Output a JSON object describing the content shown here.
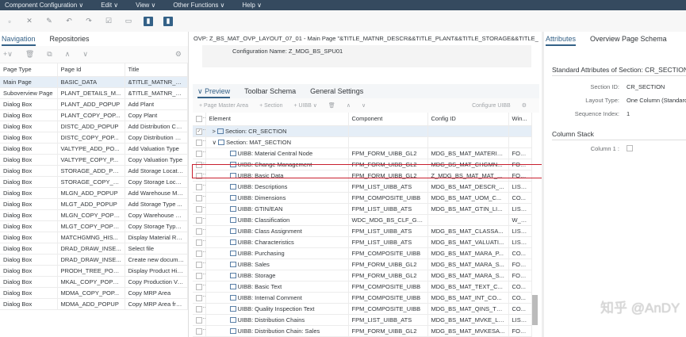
{
  "menu": [
    "Component Configuration ∨",
    "Edit ∨",
    "View ∨",
    "Other Functions ∨",
    "Help ∨"
  ],
  "left": {
    "tabs": [
      "Navigation",
      "Repositories"
    ],
    "columns": [
      "Page Type",
      "Page Id",
      "Title"
    ],
    "rows": [
      [
        "Main Page",
        "BASIC_DATA",
        "&TITLE_MATNR_D..."
      ],
      [
        "Suboverview Page",
        "PLANT_DETAILS_M...",
        "&TITLE_MATNR_D..."
      ],
      [
        "Dialog Box",
        "PLANT_ADD_POPUP",
        "Add Plant"
      ],
      [
        "Dialog Box",
        "PLANT_COPY_POP...",
        "Copy Plant"
      ],
      [
        "Dialog Box",
        "DISTC_ADD_POPUP",
        "Add Distribution Ch..."
      ],
      [
        "Dialog Box",
        "DISTC_COPY_POP...",
        "Copy Distribution C..."
      ],
      [
        "Dialog Box",
        "VALTYPE_ADD_PO...",
        "Add Valuation Type"
      ],
      [
        "Dialog Box",
        "VALTYPE_COPY_P...",
        "Copy Valuation Type"
      ],
      [
        "Dialog Box",
        "STORAGE_ADD_PO...",
        "Add Storage Location"
      ],
      [
        "Dialog Box",
        "STORAGE_COPY_P...",
        "Copy Storage Locat..."
      ],
      [
        "Dialog Box",
        "MLGN_ADD_POPUP",
        "Add Warehouse Ma..."
      ],
      [
        "Dialog Box",
        "MLGT_ADD_POPUP",
        "Add Storage Type ..."
      ],
      [
        "Dialog Box",
        "MLGN_COPY_POPUP",
        "Copy Warehouse M..."
      ],
      [
        "Dialog Box",
        "MLGT_COPY_POPUP",
        "Copy Storage Type ..."
      ],
      [
        "Dialog Box",
        "MATCHGMNG_HIS...",
        "Display Material Re..."
      ],
      [
        "Dialog Box",
        "DRAD_DRAW_INSE...",
        "Select file"
      ],
      [
        "Dialog Box",
        "DRAD_DRAW_INSE...",
        "Create new docume..."
      ],
      [
        "Dialog Box",
        "PRODH_TREE_POP...",
        "Display Product Hie..."
      ],
      [
        "Dialog Box",
        "MKAL_COPY_POPUP",
        "Copy Production Ve..."
      ],
      [
        "Dialog Box",
        "MDMA_COPY_POP...",
        "Copy MRP Area"
      ],
      [
        "Dialog Box",
        "MDMA_ADD_POPUP",
        "Copy MRP Area fro..."
      ]
    ]
  },
  "center": {
    "ovp_title": "OVP: Z_BS_MAT_OVP_LAYOUT_07_01 - Main Page \"&TITLE_MATNR_DESCR&&TITLE_PLANT&&TITLE_STORAGE&&TITLE_",
    "config_name": "Configuration Name: Z_MDG_BS_SPU01",
    "tabs": [
      "Preview",
      "Toolbar Schema",
      "General Settings"
    ],
    "actions": [
      "+ Page Master Area",
      "+ Section",
      "+ UIBB ∨",
      "Configure UIBB"
    ],
    "columns": [
      "Element",
      "Component",
      "Config ID",
      "Win..."
    ],
    "rows": [
      {
        "element": "Section: CR_SECTION",
        "component": "",
        "config": "",
        "win": "",
        "level": 0,
        "toggle": ">",
        "checked": true
      },
      {
        "element": "Section: MAT_SECTION",
        "component": "",
        "config": "",
        "win": "",
        "level": 0,
        "toggle": "∨",
        "checked": false
      },
      {
        "element": "UIBB: Material Central Node",
        "component": "FPM_FORM_UIBB_GL2",
        "config": "MDG_BS_MAT_MATERIA...",
        "win": "FOR..."
      },
      {
        "element": "UIBB: Change Management",
        "component": "FPM_FORM_UIBB_GL2",
        "config": "MDG_BS_MAT_CHGMN...",
        "win": "FOR..."
      },
      {
        "element": "UIBB: Basic Data",
        "component": "FPM_FORM_UIBB_GL2",
        "config": "Z_MDG_BS_MAT_MAT_...",
        "win": "FOR..."
      },
      {
        "element": "UIBB: Descriptions",
        "component": "FPM_LIST_UIBB_ATS",
        "config": "MDG_BS_MAT_DESCR_...",
        "win": "LIST..."
      },
      {
        "element": "UIBB: Dimensions",
        "component": "FPM_COMPOSITE_UIBB",
        "config": "MDG_BS_MAT_UOM_C...",
        "win": "CO..."
      },
      {
        "element": "UIBB: GTIN/EAN",
        "component": "FPM_LIST_UIBB_ATS",
        "config": "MDG_BS_MAT_GTIN_LI...",
        "win": "LIST..."
      },
      {
        "element": "UIBB: Classification",
        "component": "WDC_MDG_BS_CLF_GEN",
        "config": "",
        "win": "W_R..."
      },
      {
        "element": "UIBB: Class Assignment",
        "component": "FPM_LIST_UIBB_ATS",
        "config": "MDG_BS_MAT_CLASSA...",
        "win": "LIST..."
      },
      {
        "element": "UIBB: Characteristics",
        "component": "FPM_LIST_UIBB_ATS",
        "config": "MDG_BS_MAT_VALUATI...",
        "win": "LIST..."
      },
      {
        "element": "UIBB: Purchasing",
        "component": "FPM_COMPOSITE_UIBB",
        "config": "MDG_BS_MAT_MARA_P...",
        "win": "CO..."
      },
      {
        "element": "UIBB: Sales",
        "component": "FPM_FORM_UIBB_GL2",
        "config": "MDG_BS_MAT_MARA_S...",
        "win": "FOR..."
      },
      {
        "element": "UIBB: Storage",
        "component": "FPM_FORM_UIBB_GL2",
        "config": "MDG_BS_MAT_MARA_S...",
        "win": "FOR..."
      },
      {
        "element": "UIBB: Basic Text",
        "component": "FPM_COMPOSITE_UIBB",
        "config": "MDG_BS_MAT_TEXT_C...",
        "win": "CO..."
      },
      {
        "element": "UIBB: Internal Comment",
        "component": "FPM_COMPOSITE_UIBB",
        "config": "MDG_BS_MAT_INT_CO...",
        "win": "CO..."
      },
      {
        "element": "UIBB: Quality Inspection Text",
        "component": "FPM_COMPOSITE_UIBB",
        "config": "MDG_BS_MAT_QINS_TX...",
        "win": "CO..."
      },
      {
        "element": "UIBB: Distribution Chains",
        "component": "FPM_LIST_UIBB_ATS",
        "config": "MDG_BS_MAT_MVKE_LI...",
        "win": "LIST..."
      },
      {
        "element": "UIBB: Distribution Chain: Sales",
        "component": "FPM_FORM_UIBB_GL2",
        "config": "MDG_BS_MAT_MVKESA...",
        "win": "FOR..."
      }
    ]
  },
  "right": {
    "tabs": [
      "Attributes",
      "Overview Page Schema"
    ],
    "section_title": "Standard Attributes of Section: CR_SECTION",
    "fields": [
      {
        "label": "Section ID:",
        "value": "CR_SECTION"
      },
      {
        "label": "Layout Type:",
        "value": "One Column (Standard)"
      },
      {
        "label": "Sequence Index:",
        "value": "1"
      }
    ],
    "column_stack_title": "Column Stack",
    "column1_label": "Column 1 :"
  },
  "watermark": "知乎 @AnDY",
  "colors": {
    "menubar": "#354a5f",
    "accent": "#346187",
    "highlight": "#c8202f"
  }
}
